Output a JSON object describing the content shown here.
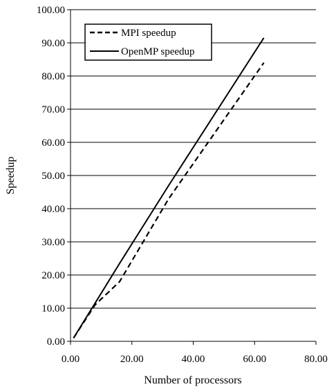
{
  "chart_data": {
    "type": "line",
    "title": "",
    "xlabel": "Number of processors",
    "ylabel": "Speedup",
    "xlim": [
      0,
      80
    ],
    "ylim": [
      0,
      100
    ],
    "x_ticks": [
      "0.00",
      "20.00",
      "40.00",
      "60.00",
      "80.00"
    ],
    "y_ticks": [
      "0.00",
      "10.00",
      "20.00",
      "30.00",
      "40.00",
      "50.00",
      "60.00",
      "70.00",
      "80.00",
      "90.00",
      "100.00"
    ],
    "grid": "horizontal",
    "legend_position": "top-left",
    "series": [
      {
        "name": "MPI speedup",
        "style": "dashed",
        "color": "#000000",
        "x": [
          1,
          8,
          16,
          32,
          63
        ],
        "y": [
          1.0,
          11.0,
          18.0,
          43.0,
          84.0
        ]
      },
      {
        "name": "OpenMP speedup",
        "style": "solid",
        "color": "#000000",
        "x": [
          1,
          8,
          16,
          32,
          63
        ],
        "y": [
          1.0,
          11.5,
          23.5,
          47.0,
          91.5
        ]
      }
    ]
  }
}
